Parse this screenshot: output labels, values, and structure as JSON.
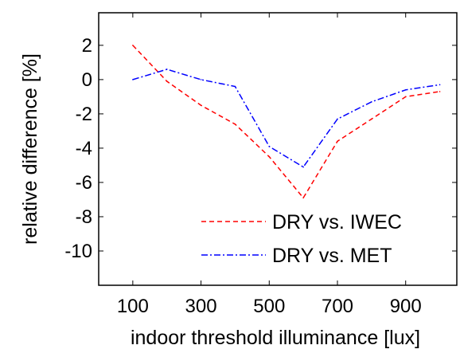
{
  "chart_data": {
    "type": "line",
    "title": "",
    "xlabel": "indoor threshold illuminance [lux]",
    "ylabel": "relative difference [%]",
    "xlim": [
      0,
      1050
    ],
    "ylim": [
      -12,
      3.9
    ],
    "xticks": [
      100,
      300,
      500,
      700,
      900
    ],
    "xtick_labels": [
      "100",
      "300",
      "500",
      "700",
      "900"
    ],
    "yticks": [
      2,
      0,
      -2,
      -4,
      -6,
      -8,
      -10
    ],
    "ytick_labels": [
      "2",
      "0",
      "-2",
      "-4",
      "-6",
      "-8",
      "-10"
    ],
    "grid": false,
    "legend_position": "bottom-right",
    "series": [
      {
        "name": "DRY vs. IWEC",
        "color": "#ff0000",
        "line_style": "dashed",
        "x": [
          100,
          200,
          300,
          400,
          500,
          600,
          700,
          800,
          900,
          1000
        ],
        "y": [
          2.0,
          -0.1,
          -1.5,
          -2.6,
          -4.5,
          -6.9,
          -3.6,
          -2.3,
          -1.0,
          -0.7
        ]
      },
      {
        "name": "DRY vs. MET",
        "color": "#0000ff",
        "line_style": "dash-dot",
        "x": [
          100,
          200,
          300,
          400,
          500,
          600,
          700,
          800,
          900,
          1000
        ],
        "y": [
          0.0,
          0.6,
          0.0,
          -0.4,
          -3.9,
          -5.1,
          -2.3,
          -1.3,
          -0.6,
          -0.3
        ]
      }
    ]
  }
}
